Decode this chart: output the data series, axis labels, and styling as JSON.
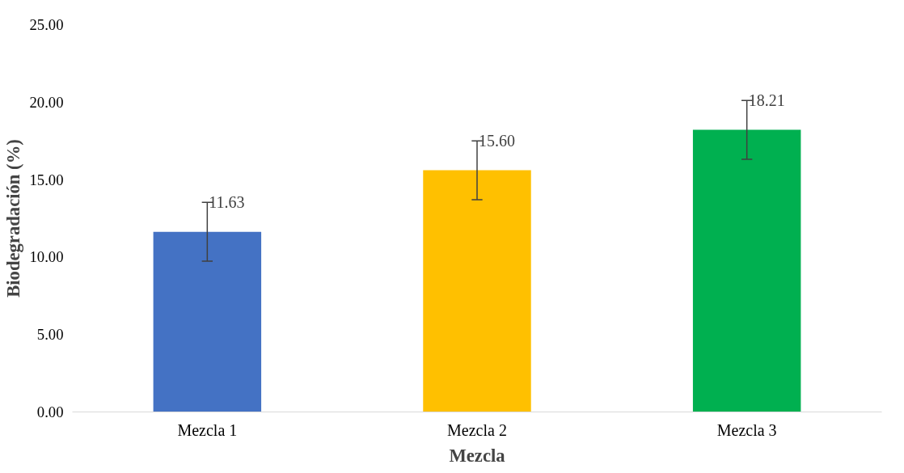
{
  "chart_data": {
    "type": "bar",
    "xlabel": "Mezcla",
    "ylabel": "Biodegradación (%)",
    "categories": [
      "Mezcla 1",
      "Mezcla 2",
      "Mezcla 3"
    ],
    "values": [
      11.63,
      15.6,
      18.21
    ],
    "colors": [
      "#4472c4",
      "#ffc000",
      "#00b050"
    ],
    "errors": [
      1.9,
      1.9,
      1.9
    ],
    "value_labels": [
      "11.63",
      "15.60",
      "18.21"
    ],
    "ylim": [
      0,
      25
    ],
    "yticks": [
      {
        "value": 0,
        "label": "0.00"
      },
      {
        "value": 5,
        "label": "5.00"
      },
      {
        "value": 10,
        "label": "10.00"
      },
      {
        "value": 15,
        "label": "15.00"
      },
      {
        "value": 20,
        "label": "20.00"
      },
      {
        "value": 25,
        "label": "25.00"
      }
    ],
    "grid": false
  }
}
